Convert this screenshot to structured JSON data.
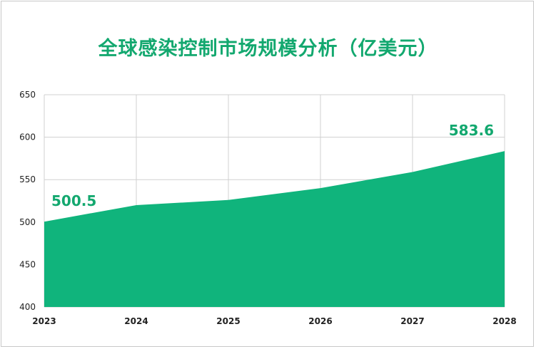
{
  "title": "全球感染控制市场规模分析（亿美元）",
  "colors": {
    "area": "#10b47c",
    "title": "#13a86f",
    "grid": "#d0d0d0"
  },
  "chart_data": {
    "type": "area",
    "title": "全球感染控制市场规模分析（亿美元）",
    "x": [
      "2023",
      "2024",
      "2025",
      "2026",
      "2027",
      "2028"
    ],
    "values": [
      500.5,
      520,
      526,
      540,
      559,
      583.6
    ],
    "ylim": [
      400,
      650
    ],
    "yticks": [
      400,
      450,
      500,
      550,
      600,
      650
    ],
    "grid": true,
    "data_labels": [
      {
        "index": 0,
        "text": "500.5"
      },
      {
        "index": 5,
        "text": "583.6"
      }
    ]
  }
}
